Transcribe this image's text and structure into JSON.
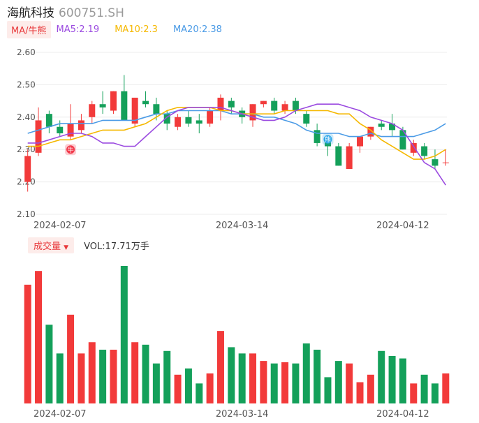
{
  "header": {
    "name": "海航科技",
    "code": "600751.SH"
  },
  "legend": {
    "badge": "MA/牛熊",
    "ma5": "MA5:2.19",
    "ma10": "MA10:2.3",
    "ma20": "MA20:2.38"
  },
  "colors": {
    "up": "#f23a3a",
    "down": "#14a05a",
    "ma5": "#9b4be0",
    "ma10": "#f5b800",
    "ma20": "#4b9be6",
    "grid": "#ececec",
    "axis_text": "#555555"
  },
  "markers": [
    {
      "label": "牛",
      "at": 4,
      "color": "#f2394a"
    },
    {
      "label": "熊",
      "at": 28,
      "color": "#2ea7e8"
    }
  ],
  "volume_legend": {
    "badge": "成交量",
    "text": "VOL:17.71万手"
  },
  "chart_data": {
    "type": "candlestick",
    "ylim": [
      2.1,
      2.6
    ],
    "yticks": [
      "2.60",
      "2.50",
      "2.40",
      "2.30",
      "2.20",
      "2.10"
    ],
    "xticks": [
      {
        "label": "2024-02-07",
        "at": 3
      },
      {
        "label": "2024-03-14",
        "at": 20
      },
      {
        "label": "2024-04-12",
        "at": 35
      }
    ],
    "candles": [
      {
        "o": 2.2,
        "h": 2.3,
        "l": 2.17,
        "c": 2.28
      },
      {
        "o": 2.29,
        "h": 2.43,
        "l": 2.28,
        "c": 2.39
      },
      {
        "o": 2.41,
        "h": 2.42,
        "l": 2.35,
        "c": 2.37
      },
      {
        "o": 2.37,
        "h": 2.39,
        "l": 2.34,
        "c": 2.35
      },
      {
        "o": 2.34,
        "h": 2.44,
        "l": 2.33,
        "c": 2.38
      },
      {
        "o": 2.36,
        "h": 2.41,
        "l": 2.35,
        "c": 2.39
      },
      {
        "o": 2.4,
        "h": 2.45,
        "l": 2.38,
        "c": 2.44
      },
      {
        "o": 2.44,
        "h": 2.48,
        "l": 2.41,
        "c": 2.43
      },
      {
        "o": 2.42,
        "h": 2.48,
        "l": 2.41,
        "c": 2.48
      },
      {
        "o": 2.48,
        "h": 2.53,
        "l": 2.39,
        "c": 2.39
      },
      {
        "o": 2.38,
        "h": 2.46,
        "l": 2.37,
        "c": 2.46
      },
      {
        "o": 2.45,
        "h": 2.48,
        "l": 2.43,
        "c": 2.44
      },
      {
        "o": 2.44,
        "h": 2.46,
        "l": 2.39,
        "c": 2.41
      },
      {
        "o": 2.41,
        "h": 2.42,
        "l": 2.36,
        "c": 2.38
      },
      {
        "o": 2.37,
        "h": 2.41,
        "l": 2.36,
        "c": 2.4
      },
      {
        "o": 2.4,
        "h": 2.42,
        "l": 2.37,
        "c": 2.38
      },
      {
        "o": 2.39,
        "h": 2.41,
        "l": 2.35,
        "c": 2.38
      },
      {
        "o": 2.38,
        "h": 2.43,
        "l": 2.37,
        "c": 2.42
      },
      {
        "o": 2.42,
        "h": 2.47,
        "l": 2.39,
        "c": 2.46
      },
      {
        "o": 2.45,
        "h": 2.46,
        "l": 2.41,
        "c": 2.43
      },
      {
        "o": 2.42,
        "h": 2.43,
        "l": 2.38,
        "c": 2.4
      },
      {
        "o": 2.39,
        "h": 2.44,
        "l": 2.37,
        "c": 2.44
      },
      {
        "o": 2.44,
        "h": 2.45,
        "l": 2.43,
        "c": 2.45
      },
      {
        "o": 2.45,
        "h": 2.46,
        "l": 2.41,
        "c": 2.42
      },
      {
        "o": 2.42,
        "h": 2.45,
        "l": 2.41,
        "c": 2.44
      },
      {
        "o": 2.45,
        "h": 2.46,
        "l": 2.41,
        "c": 2.42
      },
      {
        "o": 2.41,
        "h": 2.42,
        "l": 2.37,
        "c": 2.38
      },
      {
        "o": 2.36,
        "h": 2.38,
        "l": 2.31,
        "c": 2.32
      },
      {
        "o": 2.33,
        "h": 2.34,
        "l": 2.28,
        "c": 2.31
      },
      {
        "o": 2.31,
        "h": 2.32,
        "l": 2.25,
        "c": 2.25
      },
      {
        "o": 2.24,
        "h": 2.32,
        "l": 2.24,
        "c": 2.31
      },
      {
        "o": 2.31,
        "h": 2.34,
        "l": 2.29,
        "c": 2.34
      },
      {
        "o": 2.34,
        "h": 2.37,
        "l": 2.33,
        "c": 2.37
      },
      {
        "o": 2.38,
        "h": 2.39,
        "l": 2.36,
        "c": 2.37
      },
      {
        "o": 2.38,
        "h": 2.41,
        "l": 2.34,
        "c": 2.36
      },
      {
        "o": 2.36,
        "h": 2.37,
        "l": 2.3,
        "c": 2.3
      },
      {
        "o": 2.29,
        "h": 2.33,
        "l": 2.28,
        "c": 2.32
      },
      {
        "o": 2.31,
        "h": 2.32,
        "l": 2.27,
        "c": 2.28
      },
      {
        "o": 2.27,
        "h": 2.3,
        "l": 2.24,
        "c": 2.25
      },
      {
        "o": 2.26,
        "h": 2.3,
        "l": 2.25,
        "c": 2.26
      }
    ],
    "ma5": [
      2.32,
      2.32,
      2.33,
      2.34,
      2.35,
      2.35,
      2.34,
      2.32,
      2.32,
      2.31,
      2.31,
      2.34,
      2.37,
      2.4,
      2.42,
      2.43,
      2.43,
      2.43,
      2.43,
      2.42,
      2.41,
      2.4,
      2.39,
      2.39,
      2.4,
      2.42,
      2.43,
      2.44,
      2.44,
      2.44,
      2.43,
      2.42,
      2.4,
      2.39,
      2.38,
      2.36,
      2.31,
      2.26,
      2.24,
      2.19
    ],
    "ma10": [
      2.31,
      2.31,
      2.32,
      2.33,
      2.33,
      2.34,
      2.35,
      2.36,
      2.36,
      2.36,
      2.37,
      2.38,
      2.4,
      2.42,
      2.43,
      2.43,
      2.43,
      2.43,
      2.42,
      2.42,
      2.41,
      2.41,
      2.41,
      2.41,
      2.42,
      2.42,
      2.42,
      2.42,
      2.42,
      2.41,
      2.41,
      2.38,
      2.36,
      2.33,
      2.31,
      2.29,
      2.27,
      2.27,
      2.28,
      2.3
    ],
    "ma20": [
      2.35,
      2.36,
      2.37,
      2.38,
      2.38,
      2.38,
      2.38,
      2.39,
      2.39,
      2.39,
      2.39,
      2.4,
      2.41,
      2.41,
      2.42,
      2.42,
      2.42,
      2.42,
      2.42,
      2.41,
      2.41,
      2.41,
      2.4,
      2.4,
      2.39,
      2.38,
      2.36,
      2.35,
      2.35,
      2.35,
      2.34,
      2.34,
      2.35,
      2.34,
      2.34,
      2.34,
      2.34,
      2.35,
      2.36,
      2.38
    ],
    "volume": [
      9.5,
      10.6,
      6.3,
      4.0,
      7.1,
      4.0,
      4.9,
      4.3,
      4.3,
      11.0,
      4.9,
      4.7,
      3.2,
      4.2,
      2.3,
      2.8,
      1.6,
      2.4,
      5.8,
      4.5,
      4.0,
      4.0,
      3.4,
      3.2,
      3.3,
      3.2,
      4.8,
      4.3,
      2.1,
      3.4,
      3.2,
      1.7,
      2.3,
      4.2,
      3.8,
      3.6,
      1.6,
      2.3,
      1.6,
      2.4
    ]
  }
}
